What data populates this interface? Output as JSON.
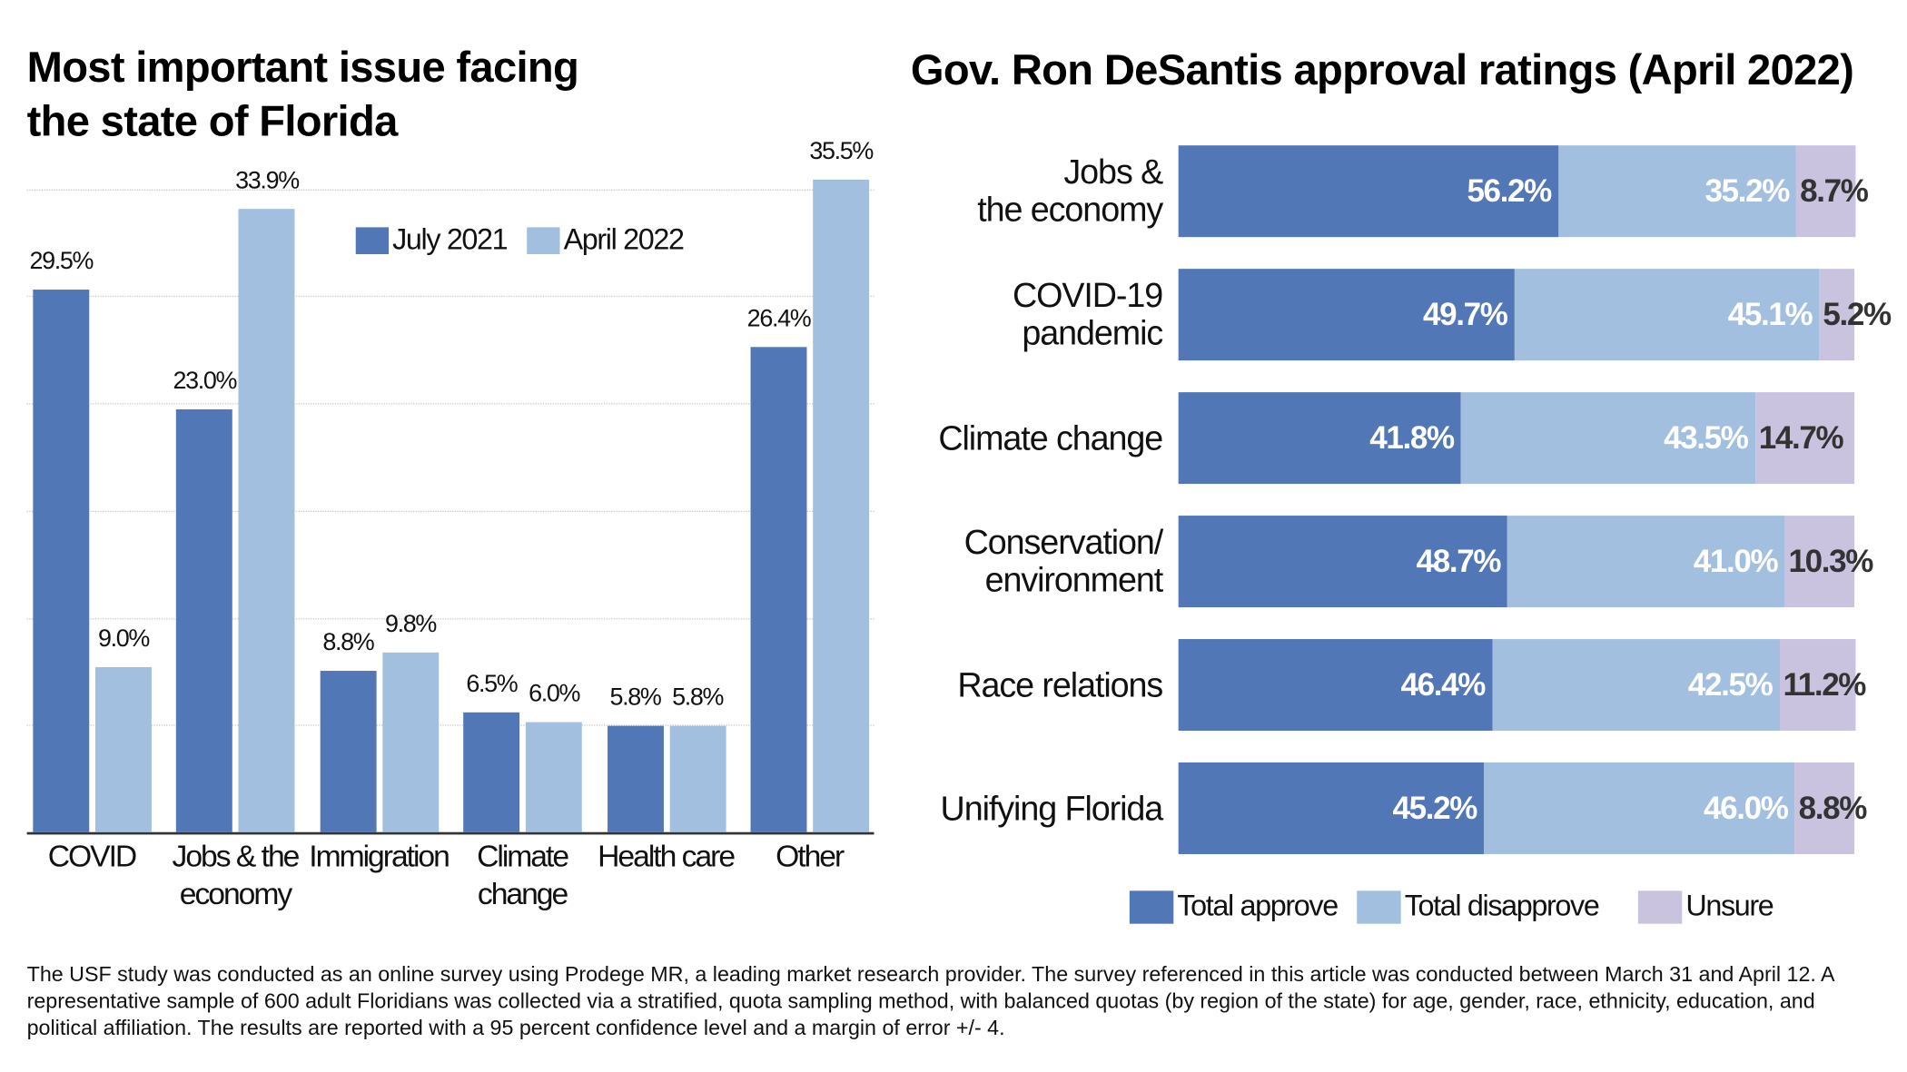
{
  "chart_data": [
    {
      "type": "bar",
      "title": "Most important issue facing the state of Florida",
      "title_lines": [
        "Most important issue facing",
        "the state of Florida"
      ],
      "categories": [
        [
          "COVID"
        ],
        [
          "Jobs & the",
          "economy"
        ],
        [
          "Immigration"
        ],
        [
          "Climate",
          "change"
        ],
        [
          "Health care"
        ],
        [
          "Other"
        ]
      ],
      "series": [
        {
          "name": "July 2021",
          "color": "#5277b7",
          "values": [
            29.5,
            23.0,
            8.8,
            6.5,
            5.8,
            26.4
          ],
          "labels": [
            "29.5%",
            "23.0%",
            "8.8%",
            "6.5%",
            "5.8%",
            "26.4%"
          ]
        },
        {
          "name": "April 2022",
          "color": "#a3bfe0",
          "values": [
            9.0,
            33.9,
            9.8,
            6.0,
            5.8,
            35.5
          ],
          "labels": [
            "9.0%",
            "33.9%",
            "9.8%",
            "6.0%",
            "5.8%",
            "35.5%"
          ]
        }
      ],
      "ylim": [
        0,
        35.5
      ],
      "grid": true,
      "legend": "top-center"
    },
    {
      "type": "bar",
      "orientation": "horizontal-stacked",
      "title": "Gov. Ron DeSantis approval ratings (April 2022)",
      "categories": [
        [
          "Jobs &",
          "the economy"
        ],
        [
          "COVID-19",
          "pandemic"
        ],
        [
          "Climate change"
        ],
        [
          "Conservation/",
          "environment"
        ],
        [
          "Race relations"
        ],
        [
          "Unifying Florida"
        ]
      ],
      "series": [
        {
          "name": "Total approve",
          "color": "#5277b7",
          "label_color": "#ffffff",
          "values": [
            56.2,
            49.7,
            41.8,
            48.7,
            46.4,
            45.2
          ],
          "labels": [
            "56.2%",
            "49.7%",
            "41.8%",
            "48.7%",
            "46.4%",
            "45.2%"
          ]
        },
        {
          "name": "Total disapprove",
          "color": "#a3bfe0",
          "label_color": "#ffffff",
          "values": [
            35.2,
            45.1,
            43.5,
            41.0,
            42.5,
            46.0
          ],
          "labels": [
            "35.2%",
            "45.1%",
            "43.5%",
            "41.0%",
            "42.5%",
            "46.0%"
          ]
        },
        {
          "name": "Unsure",
          "color": "#c9c3df",
          "label_color": "#333333",
          "values": [
            8.7,
            5.2,
            14.7,
            10.3,
            11.2,
            8.8
          ],
          "labels": [
            "8.7%",
            "5.2%",
            "14.7%",
            "10.3%",
            "11.2%",
            "8.8%"
          ]
        }
      ],
      "xlim": [
        0,
        100
      ],
      "legend": "bottom"
    }
  ],
  "footnote": "The USF study was conducted as an online survey using Prodege MR, a leading market research provider. The survey referenced in this article was conducted between March 31 and April 12. A representative sample of 600 adult Floridians was collected via a stratified, quota sampling method, with balanced quotas (by region of the state) for age, gender, race, ethnicity, education, and political affiliation. The results are reported with a 95 percent confidence level and a margin of error +/- 4."
}
